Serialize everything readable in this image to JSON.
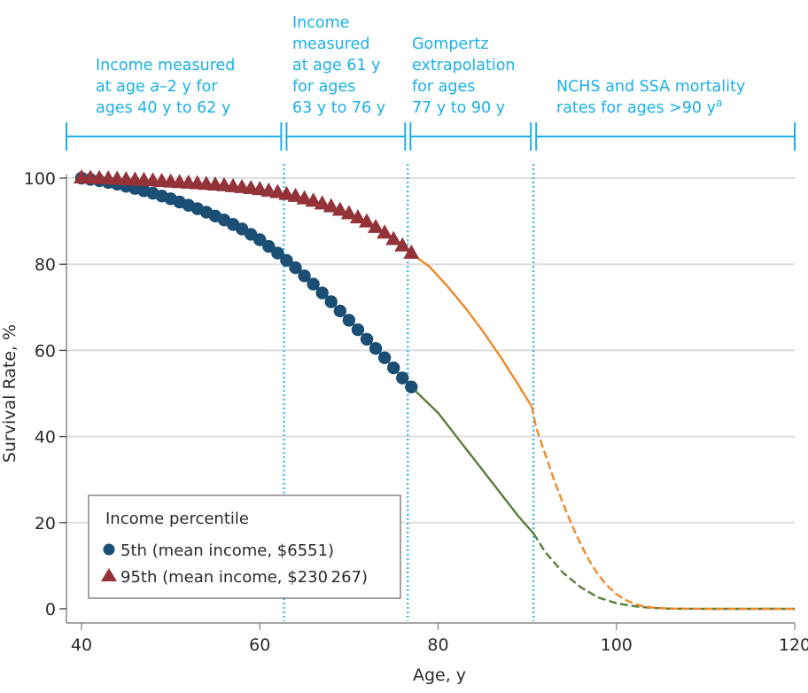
{
  "chart_data": {
    "type": "line",
    "title": "",
    "xlabel": "Age, y",
    "ylabel": "Survival Rate, %",
    "xlim": [
      38.5,
      120
    ],
    "ylim": [
      0,
      100
    ],
    "x_ticks": [
      40,
      60,
      80,
      100,
      120
    ],
    "y_ticks": [
      0,
      20,
      40,
      60,
      80,
      100
    ],
    "x_tick_labels": [
      "40",
      "60",
      "80",
      "100",
      "120"
    ],
    "y_tick_labels": [
      "0",
      "20",
      "40",
      "60",
      "80",
      "100"
    ],
    "grid": "horizontal",
    "colors": {
      "annotation": "#1ab0e8",
      "circle_marker": "#1a4e74",
      "triangle_marker": "#933238",
      "line_5th": "#5a7d3a",
      "line_95th": "#ee8a2a",
      "gridline": "#dddddd",
      "axis": "#888888"
    },
    "legend": {
      "title": "Income percentile",
      "position": "bottom-left",
      "entries": [
        {
          "label": "5th (mean income, $6551)",
          "marker": "circle"
        },
        {
          "label": "95th (mean income, $230 267)",
          "marker": "triangle"
        }
      ]
    },
    "dividers": [
      62.7,
      76.6,
      90.7
    ],
    "segments": [
      {
        "lines": [
          "Income measured",
          "at age a–2 y for",
          "ages 40 y to 62 y"
        ],
        "from": 40,
        "to": 62.7
      },
      {
        "lines": [
          "Income",
          "measured",
          "at age 61 y",
          "for ages",
          "63 y to 76 y"
        ],
        "from": 62.7,
        "to": 76.6
      },
      {
        "lines": [
          "Gompertz",
          "extrapolation",
          "for ages",
          "77 y to 90 y"
        ],
        "from": 76.6,
        "to": 90.7
      },
      {
        "lines": [
          "NCHS and SSA mortality",
          "rates for ages >90 y"
        ],
        "superscript": "a",
        "from": 90.7,
        "to": 120
      }
    ],
    "series": [
      {
        "name": "5th",
        "marker": "circle",
        "marker_x_range": [
          40,
          77
        ],
        "solid": {
          "x": [
            40,
            42,
            44,
            46,
            48,
            50,
            52,
            54,
            56,
            58,
            60,
            62,
            64,
            66,
            68,
            70,
            72,
            74,
            76,
            77,
            80,
            83,
            86,
            89,
            90.7
          ],
          "y": [
            100,
            99.4,
            98.6,
            97.6,
            96.5,
            95.2,
            93.7,
            92.1,
            90.3,
            88.2,
            85.7,
            82.6,
            79.2,
            75.4,
            71.3,
            67,
            62.6,
            58.3,
            53.6,
            51.5,
            45.5,
            37.5,
            29.5,
            21.5,
            17.5
          ]
        },
        "dashed": {
          "x": [
            90.7,
            92,
            94,
            96,
            98,
            100,
            102,
            104,
            106,
            110,
            120
          ],
          "y": [
            17.5,
            13.2,
            8.4,
            5.0,
            2.6,
            1.3,
            0.6,
            0.2,
            0.05,
            0,
            0
          ]
        }
      },
      {
        "name": "95th",
        "marker": "triangle",
        "marker_x_range": [
          40,
          77
        ],
        "solid": {
          "x": [
            40,
            44,
            48,
            52,
            56,
            60,
            62,
            64,
            66,
            68,
            70,
            72,
            74,
            76,
            77,
            79,
            81,
            83,
            85,
            87,
            89,
            90.5
          ],
          "y": [
            100,
            99.7,
            99.3,
            98.8,
            98.2,
            97.3,
            96.6,
            95.7,
            94.6,
            93.3,
            91.7,
            89.8,
            87.2,
            84.2,
            82.5,
            79.5,
            75,
            70,
            64.5,
            58.5,
            52,
            47
          ]
        },
        "dashed": {
          "x": [
            90.5,
            91,
            92,
            93,
            94,
            95,
            96,
            97,
            98,
            99,
            100,
            101,
            102,
            103,
            104,
            106,
            110,
            120
          ],
          "y": [
            47,
            42,
            36,
            30,
            24.5,
            19.5,
            15,
            11,
            7.8,
            5.3,
            3.4,
            2.1,
            1.2,
            0.6,
            0.3,
            0.05,
            0,
            0
          ]
        }
      }
    ]
  }
}
